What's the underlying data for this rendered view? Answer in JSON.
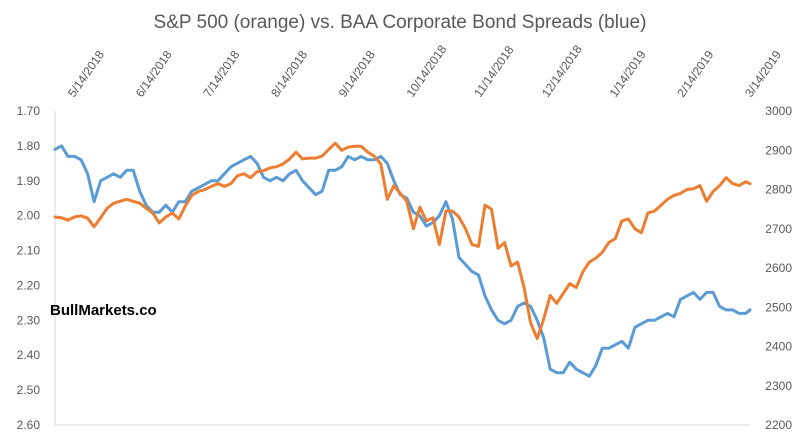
{
  "chart_data": {
    "type": "line",
    "title": "S&P 500 (orange) vs. BAA Corporate Bond Spreads (blue)",
    "watermark": "BullMarkets.co",
    "x_tick_labels": [
      "5/14/2018",
      "6/14/2018",
      "7/14/2018",
      "8/14/2018",
      "9/14/2018",
      "10/14/2018",
      "11/14/2018",
      "12/14/2018",
      "1/14/2019",
      "2/14/2019",
      "3/14/2019"
    ],
    "x_range": [
      0,
      320
    ],
    "left_axis": {
      "reversed": true,
      "ylim": [
        1.7,
        2.6
      ],
      "tick_labels": [
        "1.70",
        "1.80",
        "1.90",
        "2.00",
        "2.10",
        "2.20",
        "2.30",
        "2.40",
        "2.50",
        "2.60"
      ],
      "tick_values": [
        1.7,
        1.8,
        1.9,
        2.0,
        2.1,
        2.2,
        2.3,
        2.4,
        2.5,
        2.6
      ]
    },
    "right_axis": {
      "ylim": [
        2200,
        3000
      ],
      "tick_labels": [
        "3000",
        "2900",
        "2800",
        "2700",
        "2600",
        "2500",
        "2400",
        "2300",
        "2200"
      ],
      "tick_values": [
        3000,
        2900,
        2800,
        2700,
        2600,
        2500,
        2400,
        2300,
        2200
      ]
    },
    "colors": {
      "blue": "#5B9BD5",
      "orange": "#ED7D31",
      "axis": "#D9D9D9",
      "text": "#595959"
    },
    "series": [
      {
        "name": "BAA Corporate Bond Spreads",
        "axis": "left",
        "color": "#5B9BD5",
        "x": [
          0,
          3,
          6,
          9,
          12,
          15,
          18,
          21,
          24,
          27,
          30,
          33,
          36,
          39,
          42,
          45,
          48,
          51,
          54,
          57,
          60,
          63,
          66,
          69,
          72,
          75,
          78,
          81,
          84,
          87,
          90,
          93,
          96,
          99,
          102,
          105,
          108,
          111,
          114,
          117,
          120,
          123,
          126,
          129,
          132,
          135,
          138,
          141,
          144,
          147,
          150,
          153,
          156,
          159,
          162,
          165,
          168,
          171,
          174,
          177,
          180,
          183,
          186,
          189,
          192,
          195,
          198,
          201,
          204,
          207,
          210,
          213,
          216,
          219,
          222,
          225,
          228,
          231,
          234,
          237,
          240,
          243,
          246,
          249,
          252,
          255,
          258,
          261,
          264,
          267,
          270,
          273,
          276,
          279,
          282,
          285,
          288,
          291,
          294,
          297,
          300,
          303,
          306,
          309,
          312,
          315,
          318,
          320
        ],
        "values": [
          1.81,
          1.8,
          1.83,
          1.83,
          1.84,
          1.88,
          1.96,
          1.9,
          1.89,
          1.88,
          1.89,
          1.87,
          1.87,
          1.93,
          1.97,
          1.99,
          1.99,
          1.97,
          1.99,
          1.96,
          1.96,
          1.93,
          1.92,
          1.91,
          1.9,
          1.9,
          1.88,
          1.86,
          1.85,
          1.84,
          1.83,
          1.85,
          1.89,
          1.9,
          1.89,
          1.9,
          1.88,
          1.87,
          1.9,
          1.92,
          1.94,
          1.93,
          1.87,
          1.87,
          1.86,
          1.83,
          1.84,
          1.83,
          1.84,
          1.84,
          1.83,
          1.85,
          1.9,
          1.94,
          1.95,
          1.99,
          2.0,
          2.03,
          2.02,
          2.0,
          1.96,
          2.01,
          2.12,
          2.14,
          2.16,
          2.17,
          2.23,
          2.27,
          2.3,
          2.31,
          2.3,
          2.26,
          2.25,
          2.26,
          2.3,
          2.35,
          2.44,
          2.45,
          2.45,
          2.42,
          2.44,
          2.45,
          2.46,
          2.43,
          2.38,
          2.38,
          2.37,
          2.36,
          2.38,
          2.32,
          2.31,
          2.3,
          2.3,
          2.29,
          2.28,
          2.29,
          2.24,
          2.23,
          2.22,
          2.24,
          2.22,
          2.22,
          2.26,
          2.27,
          2.27,
          2.28,
          2.28,
          2.27
        ]
      },
      {
        "name": "S&P 500",
        "axis": "right",
        "color": "#ED7D31",
        "x": [
          0,
          3,
          6,
          9,
          12,
          15,
          18,
          21,
          24,
          27,
          30,
          33,
          36,
          39,
          42,
          45,
          48,
          51,
          54,
          57,
          60,
          63,
          66,
          69,
          72,
          75,
          78,
          81,
          84,
          87,
          90,
          93,
          96,
          99,
          102,
          105,
          108,
          111,
          114,
          117,
          120,
          123,
          126,
          129,
          132,
          135,
          138,
          141,
          144,
          147,
          150,
          153,
          156,
          159,
          162,
          165,
          168,
          171,
          174,
          177,
          180,
          183,
          186,
          189,
          192,
          195,
          198,
          201,
          204,
          207,
          210,
          213,
          216,
          219,
          222,
          225,
          228,
          231,
          234,
          237,
          240,
          243,
          246,
          249,
          252,
          255,
          258,
          261,
          264,
          267,
          270,
          273,
          276,
          279,
          282,
          285,
          288,
          291,
          294,
          297,
          300,
          303,
          306,
          309,
          312,
          315,
          318,
          320
        ],
        "values": [
          2730,
          2728,
          2722,
          2730,
          2733,
          2727,
          2705,
          2728,
          2752,
          2765,
          2770,
          2775,
          2770,
          2765,
          2752,
          2740,
          2715,
          2730,
          2740,
          2725,
          2758,
          2785,
          2795,
          2800,
          2808,
          2815,
          2808,
          2815,
          2835,
          2840,
          2830,
          2845,
          2848,
          2855,
          2858,
          2865,
          2878,
          2895,
          2878,
          2880,
          2880,
          2885,
          2902,
          2918,
          2900,
          2908,
          2910,
          2910,
          2895,
          2885,
          2865,
          2775,
          2810,
          2790,
          2770,
          2700,
          2755,
          2720,
          2728,
          2660,
          2745,
          2745,
          2730,
          2700,
          2660,
          2655,
          2760,
          2750,
          2650,
          2665,
          2605,
          2615,
          2550,
          2460,
          2420,
          2470,
          2530,
          2510,
          2535,
          2560,
          2550,
          2590,
          2615,
          2625,
          2640,
          2665,
          2675,
          2720,
          2725,
          2700,
          2690,
          2740,
          2745,
          2760,
          2775,
          2785,
          2790,
          2800,
          2802,
          2810,
          2770,
          2795,
          2810,
          2830,
          2815,
          2810,
          2820,
          2815
        ]
      }
    ]
  }
}
